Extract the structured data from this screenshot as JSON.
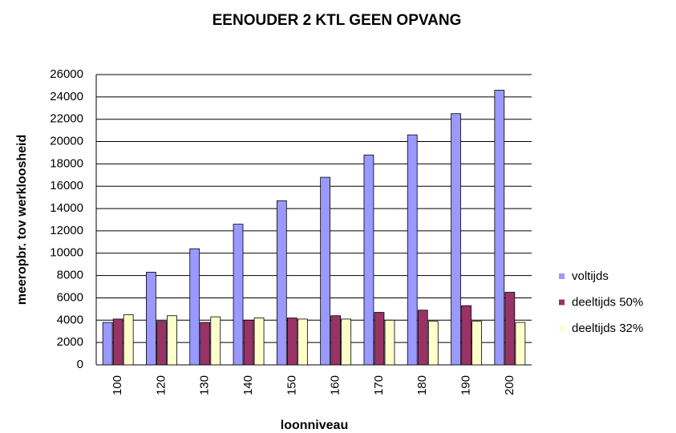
{
  "chart_data": {
    "type": "bar",
    "title": "EENOUDER 2 KTL GEEN OPVANG",
    "x_label": "loonniveau",
    "y_label": "meeropbr. tov werkloosheid",
    "categories": [
      "100",
      "120",
      "130",
      "140",
      "150",
      "160",
      "170",
      "180",
      "190",
      "200"
    ],
    "series": [
      {
        "name": "voltijds",
        "color": "#9999ff",
        "values": [
          3800,
          8300,
          10400,
          12600,
          14700,
          16800,
          18800,
          20600,
          22500,
          24600
        ]
      },
      {
        "name": "deeltijds 50%",
        "color": "#993366",
        "values": [
          4100,
          3900,
          3800,
          4000,
          4200,
          4400,
          4700,
          4900,
          5300,
          6500
        ]
      },
      {
        "name": "deeltijds 32%",
        "color": "#ffffcc",
        "values": [
          4500,
          4400,
          4300,
          4200,
          4100,
          4100,
          4000,
          3900,
          3900,
          3800
        ]
      }
    ],
    "ylim": [
      0,
      26000
    ],
    "yticks": [
      0,
      2000,
      4000,
      6000,
      8000,
      10000,
      12000,
      14000,
      16000,
      18000,
      20000,
      22000,
      24000,
      26000
    ],
    "grid": true,
    "legend": "right"
  }
}
